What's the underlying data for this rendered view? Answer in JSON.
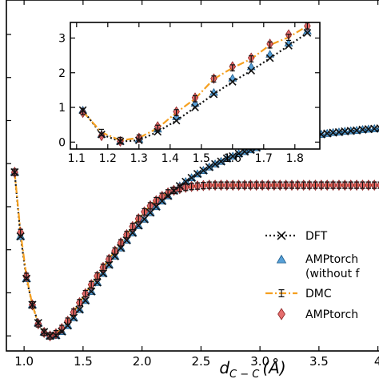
{
  "chart_data": [
    {
      "type": "line",
      "xlabel": "d_{C-C} (Å)",
      "xlabel_main": "d",
      "xlabel_sub": "C − C",
      "xlabel_rest": "(Å)",
      "xlim": [
        0.85,
        4.05
      ],
      "ylim": [
        -0.35,
        7.8
      ],
      "x_ticks": [
        1.0,
        1.5,
        2.0,
        2.5,
        3.0,
        3.5,
        4.0
      ],
      "x_tick_labels": [
        "1.0",
        "1.5",
        "2.0",
        "2.5",
        "3.0",
        "3.5",
        "4"
      ],
      "y_ticks": [
        0,
        1,
        2,
        3,
        4,
        5,
        6,
        7
      ],
      "legend_position": "right",
      "series": [
        {
          "name": "DFT",
          "color": "#111111",
          "x": [
            0.92,
            0.97,
            1.02,
            1.07,
            1.12,
            1.17,
            1.22,
            1.27,
            1.32,
            1.37,
            1.42,
            1.47,
            1.52,
            1.57,
            1.62,
            1.67,
            1.72,
            1.77,
            1.82,
            1.87,
            1.92,
            1.97,
            2.02,
            2.07,
            2.12,
            2.17,
            2.22,
            2.27,
            2.32,
            2.37,
            2.42,
            2.47,
            2.52,
            2.57,
            2.62,
            2.67,
            2.72,
            2.77,
            2.82,
            2.87,
            2.92,
            2.97,
            3.02,
            3.07,
            3.12,
            3.17,
            3.22,
            3.27,
            3.32,
            3.37,
            3.42,
            3.47,
            3.52,
            3.57,
            3.62,
            3.67,
            3.72,
            3.77,
            3.82,
            3.87,
            3.92,
            3.97,
            4.02
          ],
          "y": [
            3.8,
            2.31,
            1.33,
            0.72,
            0.3,
            0.09,
            0.0,
            0.01,
            0.1,
            0.24,
            0.42,
            0.61,
            0.82,
            1.03,
            1.24,
            1.45,
            1.65,
            1.85,
            2.04,
            2.22,
            2.39,
            2.56,
            2.71,
            2.86,
            3.0,
            3.13,
            3.25,
            3.37,
            3.48,
            3.58,
            3.67,
            3.76,
            3.84,
            3.92,
            3.99,
            4.05,
            4.12,
            4.17,
            4.23,
            4.28,
            4.32,
            4.37,
            4.41,
            4.45,
            4.48,
            4.51,
            4.54,
            4.57,
            4.6,
            4.62,
            4.64,
            4.66,
            4.68,
            4.7,
            4.72,
            4.73,
            4.75,
            4.76,
            4.77,
            4.79,
            4.8,
            4.81,
            4.82
          ]
        },
        {
          "name": "AMPtorch (without force)",
          "legend_label_line1": "AMPtorch",
          "legend_label_line2": "(without f",
          "color": "#3a8fd0",
          "x": [
            0.92,
            0.97,
            1.02,
            1.07,
            1.12,
            1.17,
            1.22,
            1.27,
            1.32,
            1.37,
            1.42,
            1.47,
            1.52,
            1.57,
            1.62,
            1.67,
            1.72,
            1.77,
            1.82,
            1.87,
            1.92,
            1.97,
            2.02,
            2.07,
            2.12,
            2.17,
            2.22,
            2.27,
            2.32,
            2.37,
            2.42,
            2.47,
            2.52,
            2.57,
            2.62,
            2.67,
            2.72,
            2.77,
            2.82,
            2.87,
            2.92,
            2.97,
            3.02,
            3.07,
            3.12,
            3.17,
            3.22,
            3.27,
            3.32,
            3.37,
            3.42,
            3.47,
            3.52,
            3.57,
            3.62,
            3.67,
            3.72,
            3.77,
            3.82,
            3.87,
            3.92,
            3.97,
            4.02
          ],
          "y": [
            3.8,
            2.31,
            1.33,
            0.72,
            0.3,
            0.09,
            0.0,
            0.01,
            0.1,
            0.24,
            0.42,
            0.61,
            0.82,
            1.03,
            1.24,
            1.45,
            1.65,
            1.85,
            2.04,
            2.22,
            2.39,
            2.56,
            2.71,
            2.86,
            3.0,
            3.13,
            3.25,
            3.37,
            3.48,
            3.58,
            3.67,
            3.76,
            3.84,
            3.92,
            3.99,
            4.05,
            4.12,
            4.17,
            4.23,
            4.28,
            4.32,
            4.37,
            4.41,
            4.45,
            4.48,
            4.51,
            4.54,
            4.57,
            4.6,
            4.62,
            4.64,
            4.66,
            4.68,
            4.7,
            4.72,
            4.73,
            4.75,
            4.76,
            4.77,
            4.79,
            4.8,
            4.81,
            4.82
          ]
        },
        {
          "name": "DMC",
          "color": "#f5a020",
          "x": [
            0.92,
            0.97,
            1.02,
            1.07,
            1.12,
            1.17,
            1.22,
            1.27,
            1.32,
            1.37,
            1.42,
            1.47,
            1.52,
            1.57,
            1.62,
            1.67,
            1.72,
            1.77,
            1.82,
            1.87,
            1.92,
            1.97,
            2.02,
            2.07,
            2.12,
            2.17,
            2.22,
            2.27,
            2.32,
            2.37,
            2.42,
            2.47,
            2.52,
            2.57,
            2.62,
            2.67,
            2.72,
            2.77,
            2.82,
            2.87,
            2.92,
            2.97,
            3.02,
            3.07,
            3.12,
            3.17,
            3.22,
            3.27,
            3.32,
            3.37,
            3.42,
            3.47,
            3.52,
            3.57,
            3.62,
            3.67,
            3.72,
            3.77,
            3.82,
            3.87,
            3.92,
            3.97,
            4.02
          ],
          "y": [
            3.8,
            2.4,
            1.38,
            0.72,
            0.28,
            0.08,
            0.0,
            0.05,
            0.17,
            0.34,
            0.55,
            0.77,
            0.98,
            1.19,
            1.39,
            1.59,
            1.78,
            1.97,
            2.16,
            2.35,
            2.54,
            2.72,
            2.88,
            3.02,
            3.14,
            3.24,
            3.32,
            3.38,
            3.42,
            3.45,
            3.47,
            3.48,
            3.49,
            3.5,
            3.5,
            3.5,
            3.5,
            3.5,
            3.5,
            3.5,
            3.5,
            3.5,
            3.5,
            3.5,
            3.5,
            3.5,
            3.5,
            3.5,
            3.5,
            3.5,
            3.5,
            3.5,
            3.5,
            3.5,
            3.5,
            3.5,
            3.5,
            3.5,
            3.5,
            3.5,
            3.5,
            3.5,
            3.5
          ]
        },
        {
          "name": "AMPtorch",
          "color": "#e05555",
          "x": [
            0.92,
            0.97,
            1.02,
            1.07,
            1.12,
            1.17,
            1.22,
            1.27,
            1.32,
            1.37,
            1.42,
            1.47,
            1.52,
            1.57,
            1.62,
            1.67,
            1.72,
            1.77,
            1.82,
            1.87,
            1.92,
            1.97,
            2.02,
            2.07,
            2.12,
            2.17,
            2.22,
            2.27,
            2.32,
            2.37,
            2.42,
            2.47,
            2.52,
            2.57,
            2.62,
            2.67,
            2.72,
            2.77,
            2.82,
            2.87,
            2.92,
            2.97,
            3.02,
            3.07,
            3.12,
            3.17,
            3.22,
            3.27,
            3.32,
            3.37,
            3.42,
            3.47,
            3.52,
            3.57,
            3.62,
            3.67,
            3.72,
            3.77,
            3.82,
            3.87,
            3.92,
            3.97,
            4.02
          ],
          "y": [
            3.8,
            2.4,
            1.38,
            0.72,
            0.28,
            0.08,
            0.0,
            0.05,
            0.17,
            0.34,
            0.55,
            0.77,
            0.98,
            1.19,
            1.39,
            1.59,
            1.78,
            1.97,
            2.16,
            2.35,
            2.54,
            2.72,
            2.88,
            3.02,
            3.14,
            3.24,
            3.32,
            3.38,
            3.42,
            3.45,
            3.47,
            3.48,
            3.49,
            3.5,
            3.5,
            3.5,
            3.5,
            3.5,
            3.5,
            3.5,
            3.5,
            3.5,
            3.5,
            3.5,
            3.5,
            3.5,
            3.5,
            3.5,
            3.5,
            3.5,
            3.5,
            3.5,
            3.5,
            3.5,
            3.5,
            3.5,
            3.5,
            3.5,
            3.5,
            3.5,
            3.5,
            3.5,
            3.5
          ]
        }
      ]
    },
    {
      "type": "line",
      "xlim": [
        1.08,
        1.88
      ],
      "ylim": [
        -0.2,
        3.45
      ],
      "x_ticks": [
        1.1,
        1.2,
        1.3,
        1.4,
        1.5,
        1.6,
        1.7,
        1.8
      ],
      "x_tick_labels": [
        "1.1",
        "1.2",
        "1.3",
        "1.4",
        "1.5",
        "1.6",
        "1.7",
        "1.8"
      ],
      "y_ticks": [
        0,
        1,
        2,
        3
      ],
      "y_tick_labels": [
        "0",
        "1",
        "2",
        "3"
      ],
      "series": [
        {
          "name": "DFT",
          "color": "#111111",
          "x": [
            1.12,
            1.18,
            1.24,
            1.3,
            1.36,
            1.42,
            1.48,
            1.54,
            1.6,
            1.66,
            1.72,
            1.78,
            1.84
          ],
          "y": [
            0.92,
            0.22,
            0.02,
            0.05,
            0.3,
            0.62,
            1.0,
            1.38,
            1.74,
            2.06,
            2.42,
            2.78,
            3.15
          ]
        },
        {
          "name": "AMPtorch (without force)",
          "color": "#3a8fd0",
          "x": [
            1.12,
            1.18,
            1.24,
            1.3,
            1.36,
            1.42,
            1.48,
            1.54,
            1.6,
            1.66,
            1.72,
            1.78,
            1.84
          ],
          "y": [
            0.92,
            0.22,
            0.02,
            0.08,
            0.37,
            0.73,
            1.12,
            1.43,
            1.84,
            2.17,
            2.53,
            2.85,
            3.2
          ]
        },
        {
          "name": "DMC",
          "color": "#f5a020",
          "x": [
            1.12,
            1.18,
            1.24,
            1.3,
            1.36,
            1.42,
            1.48,
            1.54,
            1.6,
            1.66,
            1.72,
            1.78,
            1.84
          ],
          "y": [
            0.88,
            0.28,
            0.05,
            0.12,
            0.4,
            0.85,
            1.25,
            1.82,
            2.14,
            2.4,
            2.8,
            3.02,
            3.35
          ]
        },
        {
          "name": "AMPtorch",
          "color": "#e05555",
          "x": [
            1.12,
            1.18,
            1.24,
            1.3,
            1.36,
            1.42,
            1.48,
            1.54,
            1.6,
            1.66,
            1.72,
            1.78,
            1.84
          ],
          "y": [
            0.85,
            0.18,
            0.02,
            0.12,
            0.45,
            0.88,
            1.28,
            1.83,
            2.18,
            2.43,
            2.83,
            3.1,
            3.35
          ]
        }
      ]
    }
  ]
}
